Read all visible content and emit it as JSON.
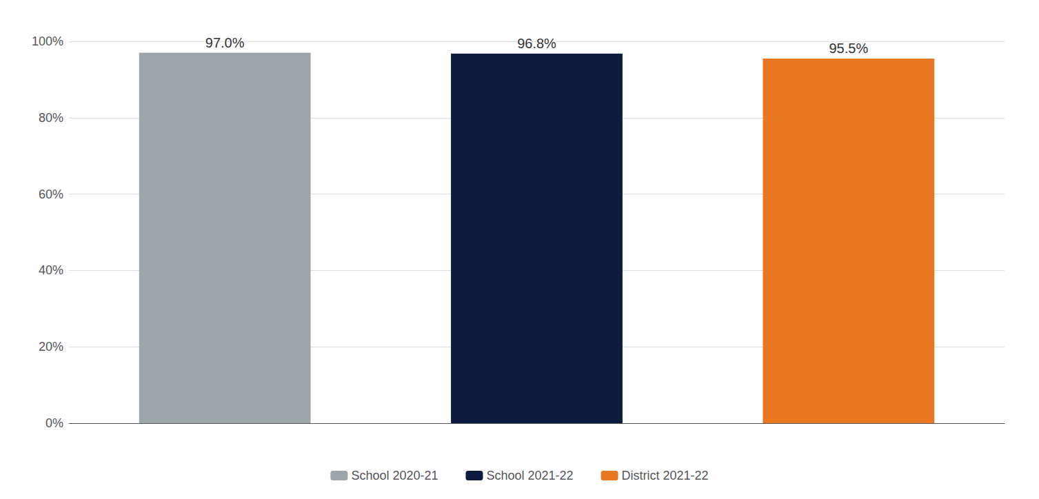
{
  "chart_data": {
    "type": "bar",
    "categories": [
      "School 2020-21",
      "School 2021-22",
      "District 2021-22"
    ],
    "values": [
      0.97,
      0.968,
      0.955
    ],
    "value_labels": [
      "97.0%",
      "96.8%",
      "95.5%"
    ],
    "data_labels": true,
    "colors": [
      "#9ea5a8",
      "#0d1b3e",
      "#e87722"
    ],
    "ylim": [
      0,
      1.0
    ],
    "yticks": [
      {
        "value": 0.0,
        "label": "0%"
      },
      {
        "value": 0.2,
        "label": "20%"
      },
      {
        "value": 0.4,
        "label": "40%"
      },
      {
        "value": 0.6,
        "label": "60%"
      },
      {
        "value": 0.8,
        "label": "80%"
      },
      {
        "value": 1.0,
        "label": "100%"
      }
    ],
    "grid": true,
    "legend": "bottom",
    "tick_labels": "y"
  }
}
